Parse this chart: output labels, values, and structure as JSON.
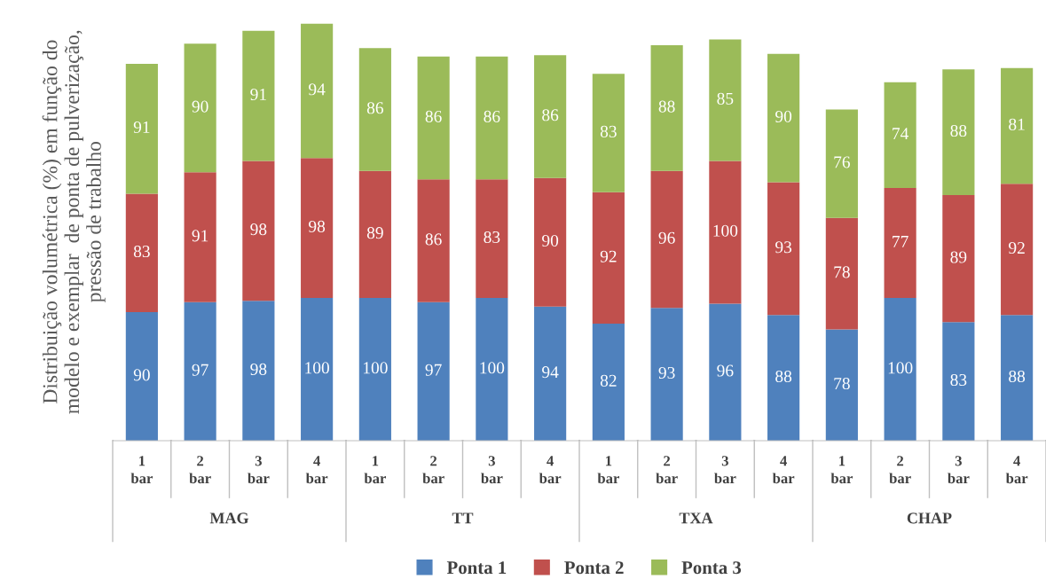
{
  "chart_data": {
    "type": "bar",
    "stacked": true,
    "data_labels": true,
    "legend": "bottom",
    "grid": false,
    "tick_labels": "x",
    "ylabel": "Distribuição volumétrica (%) em função do\nmodelo e exemplar  de ponta de pulverização,\npressão de trabalho",
    "categories": [
      "1 bar",
      "2 bar",
      "3 bar",
      "4 bar",
      "1 bar",
      "2 bar",
      "3 bar",
      "4 bar",
      "1 bar",
      "2 bar",
      "3 bar",
      "4 bar",
      "1 bar",
      "2 bar",
      "3 bar",
      "4 bar"
    ],
    "annotations": [
      "MAG",
      "TT",
      "TXA",
      "CHAP"
    ],
    "series": [
      {
        "name": "Ponta 1",
        "color": "#4f81bd",
        "values": [
          90,
          97,
          98,
          100,
          100,
          97,
          100,
          94,
          82,
          93,
          96,
          88,
          78,
          100,
          83,
          88
        ]
      },
      {
        "name": "Ponta 2",
        "color": "#c0504d",
        "values": [
          83,
          91,
          98,
          98,
          89,
          86,
          83,
          90,
          92,
          96,
          100,
          93,
          78,
          77,
          89,
          92
        ]
      },
      {
        "name": "Ponta 3",
        "color": "#9bbb59",
        "values": [
          91,
          90,
          91,
          94,
          86,
          86,
          86,
          86,
          83,
          88,
          85,
          90,
          76,
          74,
          88,
          81
        ]
      }
    ]
  }
}
